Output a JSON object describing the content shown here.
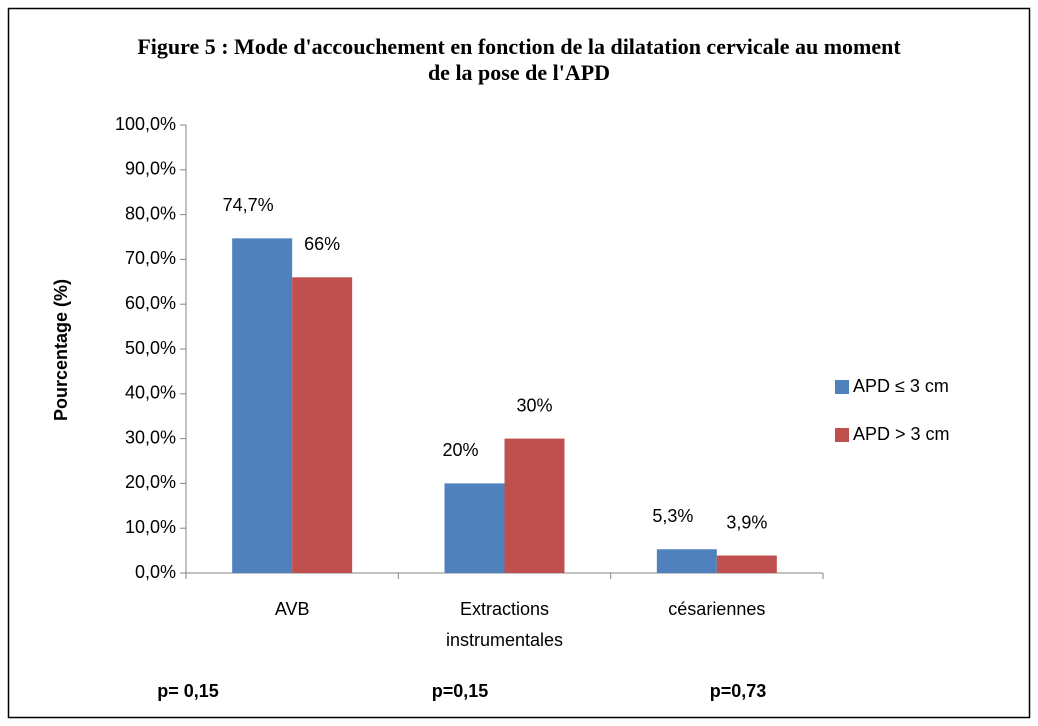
{
  "chart_data": {
    "type": "bar",
    "title": "Figure 5 : Mode d'accouchement en fonction de la dilatation cervicale au moment de la pose de l'APD",
    "y_label": "Pourcentage (%)",
    "categories": [
      "AVB",
      "Extractions instrumentales",
      "césariennes"
    ],
    "series": [
      {
        "name": "APD ≤ 3 cm",
        "color": "#4f81bd",
        "values": [
          74.7,
          20,
          5.3
        ],
        "value_labels": [
          "74,7%",
          "20%",
          "5,3%"
        ]
      },
      {
        "name": "APD > 3 cm",
        "color": "#c0504d",
        "values": [
          66,
          30,
          3.9
        ],
        "value_labels": [
          "66%",
          "30%",
          "3,9%"
        ]
      }
    ],
    "ylim": [
      0,
      100
    ],
    "yticks": [
      {
        "value": 0,
        "label": "0,0%"
      },
      {
        "value": 10,
        "label": "10,0%"
      },
      {
        "value": 20,
        "label": "20,0%"
      },
      {
        "value": 30,
        "label": "30,0%"
      },
      {
        "value": 40,
        "label": "40,0%"
      },
      {
        "value": 50,
        "label": "50,0%"
      },
      {
        "value": 60,
        "label": "60,0%"
      },
      {
        "value": 70,
        "label": "70,0%"
      },
      {
        "value": 80,
        "label": "80,0%"
      },
      {
        "value": 90,
        "label": "90,0%"
      },
      {
        "value": 100,
        "label": "100,0%"
      }
    ],
    "legend": "right",
    "annotations": [
      "p= 0,15",
      "p=0,15",
      "p=0,73"
    ]
  }
}
